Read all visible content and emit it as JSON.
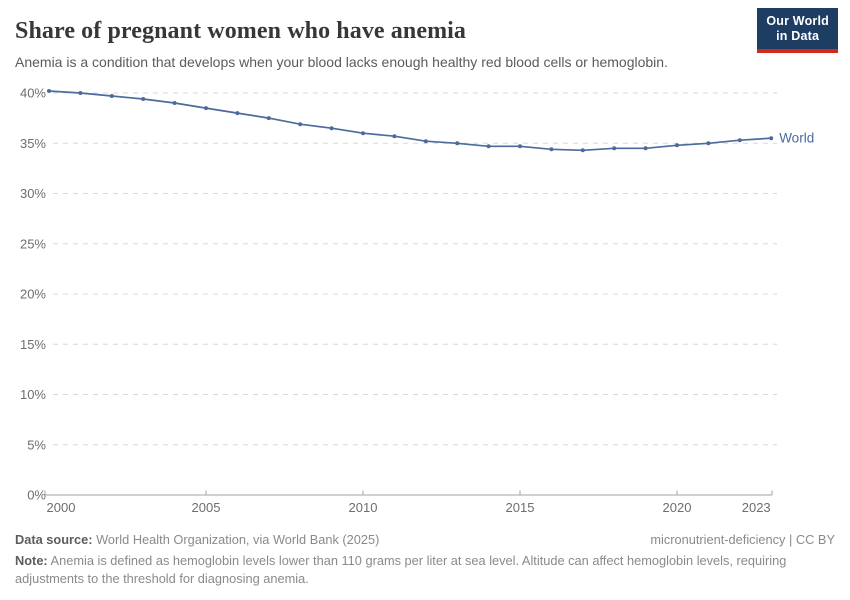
{
  "header": {
    "title": "Share of pregnant women who have anemia",
    "subtitle": "Anemia is a condition that develops when your blood lacks enough healthy red blood cells or hemoglobin.",
    "logo": {
      "line1": "Our World",
      "line2": "in Data",
      "bg_color": "#1d3d63",
      "accent_color": "#d0291e"
    }
  },
  "chart_data": {
    "type": "line",
    "title": "Share of pregnant women who have anemia",
    "xlabel": "",
    "ylabel": "",
    "x": [
      2000,
      2001,
      2002,
      2003,
      2004,
      2005,
      2006,
      2007,
      2008,
      2009,
      2010,
      2011,
      2012,
      2013,
      2014,
      2015,
      2016,
      2017,
      2018,
      2019,
      2020,
      2021,
      2022,
      2023
    ],
    "series": [
      {
        "name": "World",
        "color": "#4C6A9C",
        "values": [
          40.2,
          40.0,
          39.7,
          39.4,
          39.0,
          38.5,
          38.0,
          37.5,
          36.9,
          36.5,
          36.0,
          35.7,
          35.2,
          35.0,
          34.7,
          34.7,
          34.4,
          34.3,
          34.5,
          34.5,
          34.8,
          35.0,
          35.3,
          35.5
        ]
      }
    ],
    "ylim": [
      0,
      40
    ],
    "yticks": [
      0,
      5,
      10,
      15,
      20,
      25,
      30,
      35,
      40
    ],
    "ytick_suffix": "%",
    "xticks": [
      2000,
      2005,
      2010,
      2015,
      2020,
      2023
    ],
    "grid": "horizontal-dashed",
    "legend_position": "line-end-label",
    "colors": {
      "grid": "#d8d8d8",
      "axis": "#a3a3a3",
      "tick_label": "#6e6e6e"
    }
  },
  "footer": {
    "datasource_label": "Data source:",
    "datasource_text": " World Health Organization, via World Bank (2025)",
    "rights": "micronutrient-deficiency | CC BY",
    "note_label": "Note:",
    "note_text": " Anemia is defined as hemoglobin levels lower than 110 grams per liter at sea level. Altitude can affect hemoglobin levels, requiring adjustments to the threshold for diagnosing anemia."
  }
}
